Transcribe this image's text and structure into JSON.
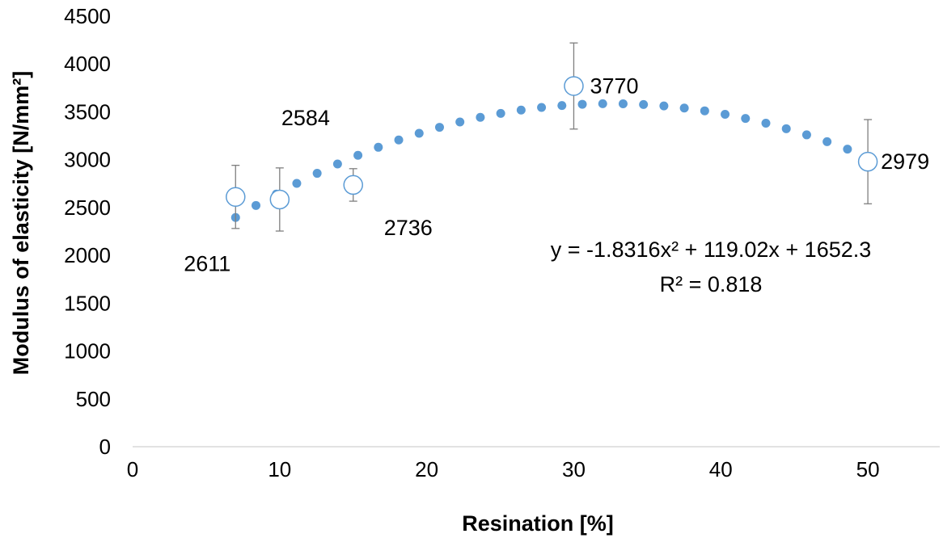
{
  "chart_data": {
    "type": "scatter",
    "title": "",
    "xlabel": "Resination [%]",
    "ylabel": "Modulus of elasticity [N/mm²]",
    "xlim": [
      0,
      55
    ],
    "ylim": [
      0,
      4500
    ],
    "xticks": [
      0,
      10,
      20,
      30,
      40,
      50
    ],
    "yticks": [
      0,
      500,
      1000,
      1500,
      2000,
      2500,
      3000,
      3500,
      4000,
      4500
    ],
    "grid": false,
    "series": [
      {
        "points": [
          {
            "x": 7,
            "y": 2611,
            "label": "2611",
            "err": 330
          },
          {
            "x": 10,
            "y": 2584,
            "label": "2584",
            "err": 330
          },
          {
            "x": 15,
            "y": 2736,
            "label": "2736",
            "err": 170
          },
          {
            "x": 30,
            "y": 3770,
            "label": "3770",
            "err": 450
          },
          {
            "x": 50,
            "y": 2979,
            "label": "2979",
            "err": 440
          }
        ],
        "marker": "open-circle",
        "color": "#5b9bd5"
      }
    ],
    "trendline": {
      "type": "polynomial",
      "coefficients": [
        -1.8316,
        119.02,
        1652.3
      ],
      "x_range": [
        7,
        50
      ],
      "style": "dotted",
      "color": "#5b9bd5",
      "equation": "y = -1.8316x² + 119.02x + 1652.3",
      "r2": "R² = 0.818"
    }
  }
}
